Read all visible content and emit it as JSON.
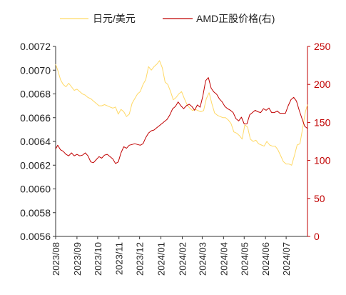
{
  "chart_data": {
    "type": "line",
    "title": "",
    "legend_placement": "top",
    "grid": false,
    "x_ticks": [
      "2023/08",
      "2023/09",
      "2023/10",
      "2023/11",
      "2023/12",
      "2024/01",
      "2024/02",
      "2024/03",
      "2024/04",
      "2024/05",
      "2024/06",
      "2024/07"
    ],
    "xlim": [
      "2023-08-01",
      "2024-08-01"
    ],
    "y_left": {
      "ticks": [
        "0.0056",
        "0.0058",
        "0.0060",
        "0.0062",
        "0.0064",
        "0.0066",
        "0.0068",
        "0.0070",
        "0.0072"
      ],
      "ylim": [
        0.0056,
        0.0072
      ]
    },
    "y_right": {
      "ticks": [
        "0",
        "50",
        "100",
        "150",
        "200",
        "250"
      ],
      "ylim": [
        0,
        250
      ]
    },
    "series": [
      {
        "name": "日元/美元",
        "axis": "left",
        "color": "#ffd966",
        "points": [
          [
            "2023-08-01",
            0.00705
          ],
          [
            "2023-08-04",
            0.007
          ],
          [
            "2023-08-08",
            0.00692
          ],
          [
            "2023-08-12",
            0.00688
          ],
          [
            "2023-08-16",
            0.00686
          ],
          [
            "2023-08-20",
            0.00689
          ],
          [
            "2023-08-24",
            0.00686
          ],
          [
            "2023-08-28",
            0.00683
          ],
          [
            "2023-09-01",
            0.00684
          ],
          [
            "2023-09-05",
            0.00682
          ],
          [
            "2023-09-09",
            0.0068
          ],
          [
            "2023-09-13",
            0.00679
          ],
          [
            "2023-09-17",
            0.00677
          ],
          [
            "2023-09-21",
            0.00676
          ],
          [
            "2023-09-25",
            0.00674
          ],
          [
            "2023-09-29",
            0.00672
          ],
          [
            "2023-10-03",
            0.0067
          ],
          [
            "2023-10-07",
            0.0067
          ],
          [
            "2023-10-11",
            0.00671
          ],
          [
            "2023-10-15",
            0.0067
          ],
          [
            "2023-10-19",
            0.00669
          ],
          [
            "2023-10-23",
            0.00668
          ],
          [
            "2023-10-27",
            0.00669
          ],
          [
            "2023-10-31",
            0.00663
          ],
          [
            "2023-11-04",
            0.00667
          ],
          [
            "2023-11-08",
            0.00665
          ],
          [
            "2023-11-12",
            0.00661
          ],
          [
            "2023-11-16",
            0.00663
          ],
          [
            "2023-11-20",
            0.00672
          ],
          [
            "2023-11-24",
            0.00676
          ],
          [
            "2023-11-28",
            0.0068
          ],
          [
            "2023-12-02",
            0.00682
          ],
          [
            "2023-12-06",
            0.00688
          ],
          [
            "2023-12-10",
            0.00692
          ],
          [
            "2023-12-14",
            0.00703
          ],
          [
            "2023-12-18",
            0.007
          ],
          [
            "2023-12-22",
            0.00703
          ],
          [
            "2023-12-26",
            0.00705
          ],
          [
            "2023-12-30",
            0.00708
          ],
          [
            "2024-01-03",
            0.00702
          ],
          [
            "2024-01-07",
            0.0069
          ],
          [
            "2024-01-11",
            0.00688
          ],
          [
            "2024-01-15",
            0.00682
          ],
          [
            "2024-01-19",
            0.00675
          ],
          [
            "2024-01-23",
            0.00677
          ],
          [
            "2024-01-27",
            0.0068
          ],
          [
            "2024-01-31",
            0.00682
          ],
          [
            "2024-02-04",
            0.00676
          ],
          [
            "2024-02-08",
            0.00671
          ],
          [
            "2024-02-12",
            0.00668
          ],
          [
            "2024-02-16",
            0.00666
          ],
          [
            "2024-02-20",
            0.00667
          ],
          [
            "2024-02-24",
            0.00666
          ],
          [
            "2024-02-28",
            0.00665
          ],
          [
            "2024-03-03",
            0.00666
          ],
          [
            "2024-03-07",
            0.00676
          ],
          [
            "2024-03-11",
            0.00681
          ],
          [
            "2024-03-15",
            0.00672
          ],
          [
            "2024-03-19",
            0.00664
          ],
          [
            "2024-03-23",
            0.00662
          ],
          [
            "2024-03-27",
            0.00661
          ],
          [
            "2024-03-31",
            0.0066
          ],
          [
            "2024-04-04",
            0.0066
          ],
          [
            "2024-04-08",
            0.00658
          ],
          [
            "2024-04-12",
            0.00655
          ],
          [
            "2024-04-16",
            0.00648
          ],
          [
            "2024-04-20",
            0.00647
          ],
          [
            "2024-04-24",
            0.00645
          ],
          [
            "2024-04-28",
            0.00642
          ],
          [
            "2024-05-02",
            0.00654
          ],
          [
            "2024-05-06",
            0.00652
          ],
          [
            "2024-05-10",
            0.00642
          ],
          [
            "2024-05-14",
            0.0064
          ],
          [
            "2024-05-18",
            0.00641
          ],
          [
            "2024-05-22",
            0.00638
          ],
          [
            "2024-05-26",
            0.00637
          ],
          [
            "2024-05-30",
            0.00636
          ],
          [
            "2024-06-03",
            0.0064
          ],
          [
            "2024-06-07",
            0.00637
          ],
          [
            "2024-06-11",
            0.00636
          ],
          [
            "2024-06-15",
            0.00636
          ],
          [
            "2024-06-19",
            0.00633
          ],
          [
            "2024-06-23",
            0.00628
          ],
          [
            "2024-06-27",
            0.00623
          ],
          [
            "2024-07-01",
            0.00621
          ],
          [
            "2024-07-05",
            0.00621
          ],
          [
            "2024-07-09",
            0.0062
          ],
          [
            "2024-07-13",
            0.00628
          ],
          [
            "2024-07-17",
            0.00637
          ],
          [
            "2024-07-21",
            0.00638
          ],
          [
            "2024-07-25",
            0.00651
          ],
          [
            "2024-07-29",
            0.00665
          ],
          [
            "2024-08-01",
            0.00671
          ]
        ]
      },
      {
        "name": "AMD正股价格(右)",
        "axis": "right",
        "color": "#c00000",
        "points": [
          [
            "2023-08-01",
            115
          ],
          [
            "2023-08-04",
            120
          ],
          [
            "2023-08-08",
            114
          ],
          [
            "2023-08-12",
            112
          ],
          [
            "2023-08-16",
            108
          ],
          [
            "2023-08-20",
            106
          ],
          [
            "2023-08-24",
            110
          ],
          [
            "2023-08-28",
            106
          ],
          [
            "2023-09-01",
            108
          ],
          [
            "2023-09-05",
            106
          ],
          [
            "2023-09-09",
            107
          ],
          [
            "2023-09-13",
            110
          ],
          [
            "2023-09-17",
            106
          ],
          [
            "2023-09-21",
            98
          ],
          [
            "2023-09-25",
            97
          ],
          [
            "2023-09-29",
            101
          ],
          [
            "2023-10-03",
            105
          ],
          [
            "2023-10-07",
            103
          ],
          [
            "2023-10-11",
            107
          ],
          [
            "2023-10-15",
            108
          ],
          [
            "2023-10-19",
            105
          ],
          [
            "2023-10-23",
            102
          ],
          [
            "2023-10-27",
            96
          ],
          [
            "2023-10-31",
            98
          ],
          [
            "2023-11-04",
            110
          ],
          [
            "2023-11-08",
            118
          ],
          [
            "2023-11-12",
            116
          ],
          [
            "2023-11-16",
            120
          ],
          [
            "2023-11-20",
            121
          ],
          [
            "2023-11-24",
            122
          ],
          [
            "2023-11-28",
            121
          ],
          [
            "2023-12-02",
            120
          ],
          [
            "2023-12-06",
            122
          ],
          [
            "2023-12-10",
            130
          ],
          [
            "2023-12-14",
            136
          ],
          [
            "2023-12-18",
            139
          ],
          [
            "2023-12-22",
            140
          ],
          [
            "2023-12-26",
            143
          ],
          [
            "2023-12-30",
            146
          ],
          [
            "2024-01-10",
            154
          ],
          [
            "2024-01-14",
            160
          ],
          [
            "2024-01-18",
            168
          ],
          [
            "2024-01-22",
            171
          ],
          [
            "2024-01-26",
            177
          ],
          [
            "2024-01-30",
            172
          ],
          [
            "2024-02-03",
            168
          ],
          [
            "2024-02-07",
            172
          ],
          [
            "2024-02-11",
            174
          ],
          [
            "2024-02-15",
            171
          ],
          [
            "2024-02-19",
            166
          ],
          [
            "2024-02-23",
            173
          ],
          [
            "2024-02-27",
            170
          ],
          [
            "2024-03-02",
            185
          ],
          [
            "2024-03-06",
            205
          ],
          [
            "2024-03-10",
            209
          ],
          [
            "2024-03-14",
            195
          ],
          [
            "2024-03-18",
            190
          ],
          [
            "2024-03-22",
            187
          ],
          [
            "2024-03-26",
            181
          ],
          [
            "2024-03-30",
            177
          ],
          [
            "2024-04-03",
            171
          ],
          [
            "2024-04-07",
            168
          ],
          [
            "2024-04-11",
            166
          ],
          [
            "2024-04-15",
            163
          ],
          [
            "2024-04-19",
            155
          ],
          [
            "2024-04-23",
            152
          ],
          [
            "2024-04-27",
            157
          ],
          [
            "2024-05-01",
            148
          ],
          [
            "2024-05-05",
            148
          ],
          [
            "2024-05-09",
            160
          ],
          [
            "2024-05-13",
            163
          ],
          [
            "2024-05-17",
            166
          ],
          [
            "2024-05-21",
            164
          ],
          [
            "2024-05-25",
            163
          ],
          [
            "2024-05-29",
            168
          ],
          [
            "2024-06-02",
            166
          ],
          [
            "2024-06-06",
            169
          ],
          [
            "2024-06-10",
            163
          ],
          [
            "2024-06-14",
            163
          ],
          [
            "2024-06-18",
            165
          ],
          [
            "2024-06-22",
            162
          ],
          [
            "2024-06-26",
            162
          ],
          [
            "2024-06-30",
            162
          ],
          [
            "2024-07-04",
            172
          ],
          [
            "2024-07-08",
            180
          ],
          [
            "2024-07-12",
            183
          ],
          [
            "2024-07-16",
            178
          ],
          [
            "2024-07-20",
            166
          ],
          [
            "2024-07-24",
            155
          ],
          [
            "2024-07-28",
            145
          ],
          [
            "2024-08-01",
            142
          ]
        ]
      }
    ]
  }
}
